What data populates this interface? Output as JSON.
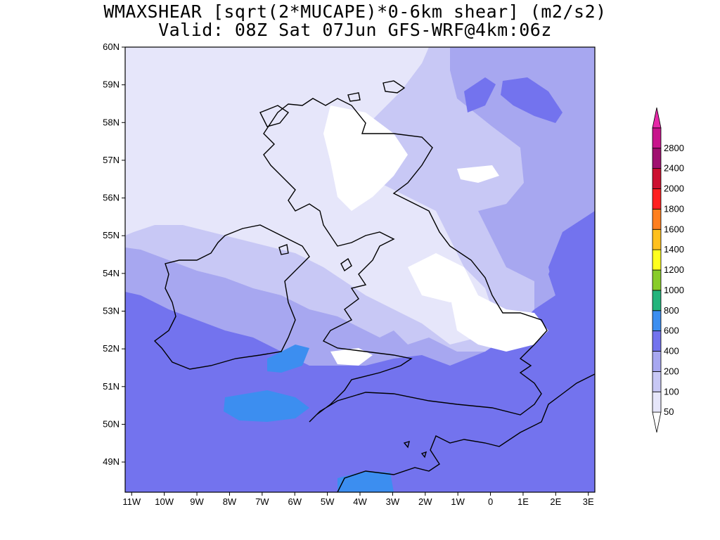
{
  "title": {
    "line1": "WMAXSHEAR [sqrt(2*MUCAPE)*0-6km shear] (m2/s2)",
    "line2": "Valid: 08Z Sat 07Jun GFS-WRF@4km:06z"
  },
  "map": {
    "lat_labels": [
      "60N",
      "59N",
      "58N",
      "57N",
      "56N",
      "55N",
      "54N",
      "53N",
      "52N",
      "51N",
      "50N",
      "49N"
    ],
    "lon_labels": [
      "11W",
      "10W",
      "9W",
      "8W",
      "7W",
      "6W",
      "5W",
      "4W",
      "3W",
      "2W",
      "1W",
      "0",
      "1E",
      "2E",
      "3E"
    ],
    "lat_range": [
      48.2,
      60
    ],
    "lon_range": [
      -11.2,
      3.2
    ]
  },
  "colorbar": {
    "labels": [
      "50",
      "100",
      "200",
      "400",
      "600",
      "800",
      "1000",
      "1200",
      "1400",
      "1600",
      "1800",
      "2000",
      "2400",
      "2800"
    ],
    "colors": [
      "#ffffff",
      "#e6e6fa",
      "#c8c8f5",
      "#a7a7f0",
      "#7373ee",
      "#3c8ef0",
      "#24b47c",
      "#88cc2a",
      "#ffff1e",
      "#ffc01e",
      "#ff7f1e",
      "#ff2020",
      "#cc1030",
      "#a01070",
      "#c8148c",
      "#e628a8"
    ]
  },
  "colors": {
    "land_bg": "#a7a7f0",
    "sea_south": "#7373ee",
    "sea_north": "#e6e6fa",
    "patch_blue": "#3c8ef0",
    "white_area": "#ffffff",
    "coast": "#000000"
  }
}
